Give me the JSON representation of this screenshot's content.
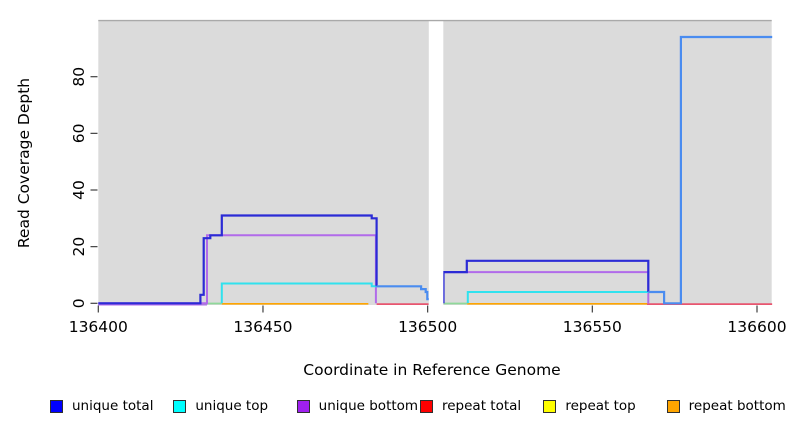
{
  "axes": {
    "x": {
      "label": "Coordinate in Reference Genome",
      "ticks": [
        136400,
        136450,
        136500,
        136550,
        136600
      ]
    },
    "y": {
      "label": "Read Coverage Depth",
      "ticks": [
        0,
        20,
        40,
        60,
        80
      ]
    }
  },
  "legend": [
    {
      "id": "unique-total",
      "label": "unique total",
      "swatch": "#0000FF"
    },
    {
      "id": "unique-top",
      "label": "unique top",
      "swatch": "#00FFFF"
    },
    {
      "id": "unique-bottom",
      "label": "unique bottom",
      "swatch": "#A020F0"
    },
    {
      "id": "repeat-total",
      "label": "repeat total",
      "swatch": "#FF0000"
    },
    {
      "id": "repeat-top",
      "label": "repeat top",
      "swatch": "#FFFF00"
    },
    {
      "id": "repeat-bottom",
      "label": "repeat bottom",
      "swatch": "#FFA500"
    }
  ],
  "colors": {
    "panel_bg": "#DBDBDB",
    "panel_border": "#A9A9A9",
    "tick": "#404040",
    "dark_blue": "#2B2BD5",
    "light_blue": "#4A8CF0",
    "purple_line": "#B16BEA",
    "cyan_line": "#30E2EE",
    "orange_line": "#FFA500",
    "crimson_line": "#E8556F",
    "green_line": "#8FD89A",
    "gap_white": "#FFFFFF"
  },
  "chart_data": {
    "type": "line",
    "title": "",
    "xlabel": "Coordinate in Reference Genome",
    "ylabel": "Read Coverage Depth",
    "xlim": [
      136395,
      136605
    ],
    "ylim": [
      0,
      100
    ],
    "grid": false,
    "legend_position": "bottom",
    "no_data_gap": {
      "from": 136500,
      "to": 136505
    },
    "series": [
      {
        "name": "unique total",
        "color": "#0000FF",
        "runs": [
          [
            [
              136400,
              0
            ],
            [
              136431,
              3
            ],
            [
              136432,
              23
            ],
            [
              136434,
              24
            ],
            [
              136438,
              31
            ],
            [
              136483,
              30
            ],
            [
              136485,
              6
            ],
            [
              136498,
              5
            ],
            [
              136500,
              4
            ]
          ],
          [
            [
              136505,
              11
            ],
            [
              136512,
              15
            ],
            [
              136567,
              4
            ],
            [
              136572,
              0
            ],
            [
              136577,
              94
            ],
            [
              136605,
              94
            ]
          ]
        ]
      },
      {
        "name": "unique top",
        "color": "#00FFFF",
        "runs": [
          [
            [
              136400,
              0
            ],
            [
              136438,
              7
            ],
            [
              136483,
              6
            ],
            [
              136485,
              6
            ],
            [
              136498,
              5
            ],
            [
              136500,
              4
            ]
          ],
          [
            [
              136505,
              0
            ],
            [
              136512,
              4
            ],
            [
              136572,
              0
            ],
            [
              136577,
              94
            ],
            [
              136605,
              94
            ]
          ]
        ]
      },
      {
        "name": "unique bottom",
        "color": "#A020F0",
        "runs": [
          [
            [
              136400,
              0
            ],
            [
              136433,
              24
            ],
            [
              136485,
              0
            ],
            [
              136500,
              0
            ]
          ],
          [
            [
              136505,
              11
            ],
            [
              136567,
              0
            ],
            [
              136605,
              0
            ]
          ]
        ]
      },
      {
        "name": "repeat total",
        "color": "#FF0000",
        "runs": [
          [
            [
              136400,
              0
            ],
            [
              136500,
              0
            ]
          ],
          [
            [
              136505,
              0
            ],
            [
              136605,
              0
            ]
          ]
        ]
      },
      {
        "name": "repeat top",
        "color": "#FFFF00",
        "runs": [
          [
            [
              136400,
              0
            ],
            [
              136500,
              0
            ]
          ],
          [
            [
              136505,
              0
            ],
            [
              136605,
              0
            ]
          ]
        ]
      },
      {
        "name": "repeat bottom",
        "color": "#FFA500",
        "runs": [
          [
            [
              136400,
              0
            ],
            [
              136500,
              0
            ]
          ],
          [
            [
              136505,
              0
            ],
            [
              136605,
              0
            ]
          ]
        ]
      }
    ],
    "render": {
      "baselines": [
        {
          "name": "baseline-violet",
          "color": "purple_line",
          "from": 136400,
          "to": 136433,
          "dy": 1.3
        },
        {
          "name": "baseline-green-1",
          "color": "green_line",
          "from": 136431,
          "to": 136437.5,
          "dy": 0.2
        },
        {
          "name": "baseline-orange-1",
          "color": "orange_line",
          "from": 136437.5,
          "to": 136482,
          "dy": 0.5
        },
        {
          "name": "baseline-crimson-1",
          "color": "crimson_line",
          "from": 136484.5,
          "to": 136500.3,
          "dy": 0.8
        },
        {
          "name": "baseline-green-2",
          "color": "green_line",
          "from": 136504.8,
          "to": 136512,
          "dy": 0.2
        },
        {
          "name": "baseline-orange-2",
          "color": "orange_line",
          "from": 136512,
          "to": 136566.6,
          "dy": 0.5
        },
        {
          "name": "baseline-crimson-2",
          "color": "crimson_line",
          "from": 136566.6,
          "to": 136604.6,
          "dy": 0.8
        }
      ],
      "paths": [
        {
          "name": "unique-bottom-hump-1",
          "color": "purple_line",
          "w": 2.0,
          "pts": [
            [
              136400,
              0
            ],
            [
              136433,
              0
            ],
            [
              136433,
              24
            ],
            [
              136484.3,
              24
            ],
            [
              136484.3,
              0
            ]
          ]
        },
        {
          "name": "unique-bottom-hump-2",
          "color": "purple_line",
          "w": 2.0,
          "pts": [
            [
              136504.8,
              0
            ],
            [
              136504.8,
              11
            ],
            [
              136567,
              11
            ],
            [
              136567,
              0
            ]
          ]
        },
        {
          "name": "unique-top-hump-1",
          "color": "cyan_line",
          "w": 2.0,
          "pts": [
            [
              136437.5,
              0
            ],
            [
              136437.5,
              7
            ],
            [
              136483,
              7
            ],
            [
              136483,
              6
            ],
            [
              136484.5,
              6
            ]
          ]
        },
        {
          "name": "unique-top-hump-2",
          "color": "cyan_line",
          "w": 2.0,
          "pts": [
            [
              136512.2,
              0
            ],
            [
              136512.2,
              4
            ],
            [
              136567,
              4
            ]
          ]
        },
        {
          "name": "unique-total-hump-1",
          "color": "dark_blue",
          "w": 2.2,
          "pts": [
            [
              136400,
              0
            ],
            [
              136431,
              0
            ],
            [
              136431,
              3
            ],
            [
              136432,
              3
            ],
            [
              136432,
              23
            ],
            [
              136434,
              23
            ],
            [
              136434,
              24
            ],
            [
              136437.5,
              24
            ],
            [
              136437.5,
              31
            ],
            [
              136483,
              31
            ],
            [
              136483,
              30
            ],
            [
              136484.5,
              30
            ],
            [
              136484.5,
              6
            ]
          ]
        },
        {
          "name": "total-top-overlap-1",
          "color": "light_blue",
          "w": 2.2,
          "pts": [
            [
              136484.5,
              6
            ],
            [
              136498,
              6
            ],
            [
              136498,
              5
            ],
            [
              136499.4,
              5
            ],
            [
              136499.4,
              4
            ],
            [
              136499.9,
              4
            ],
            [
              136499.9,
              1.5
            ],
            [
              136500.4,
              1.5
            ]
          ]
        },
        {
          "name": "unique-total-hump-2",
          "color": "dark_blue",
          "w": 2.2,
          "pts": [
            [
              136504.8,
              0
            ],
            [
              136504.8,
              11
            ],
            [
              136511.9,
              11
            ],
            [
              136511.9,
              15
            ],
            [
              136567,
              15
            ],
            [
              136567,
              4
            ]
          ]
        },
        {
          "name": "total-top-overlap-2",
          "color": "light_blue",
          "w": 2.2,
          "pts": [
            [
              136567,
              4
            ],
            [
              136571.8,
              4
            ],
            [
              136571.8,
              0
            ],
            [
              136576.9,
              0
            ],
            [
              136576.9,
              94
            ],
            [
              136604.6,
              94
            ]
          ]
        }
      ]
    }
  }
}
